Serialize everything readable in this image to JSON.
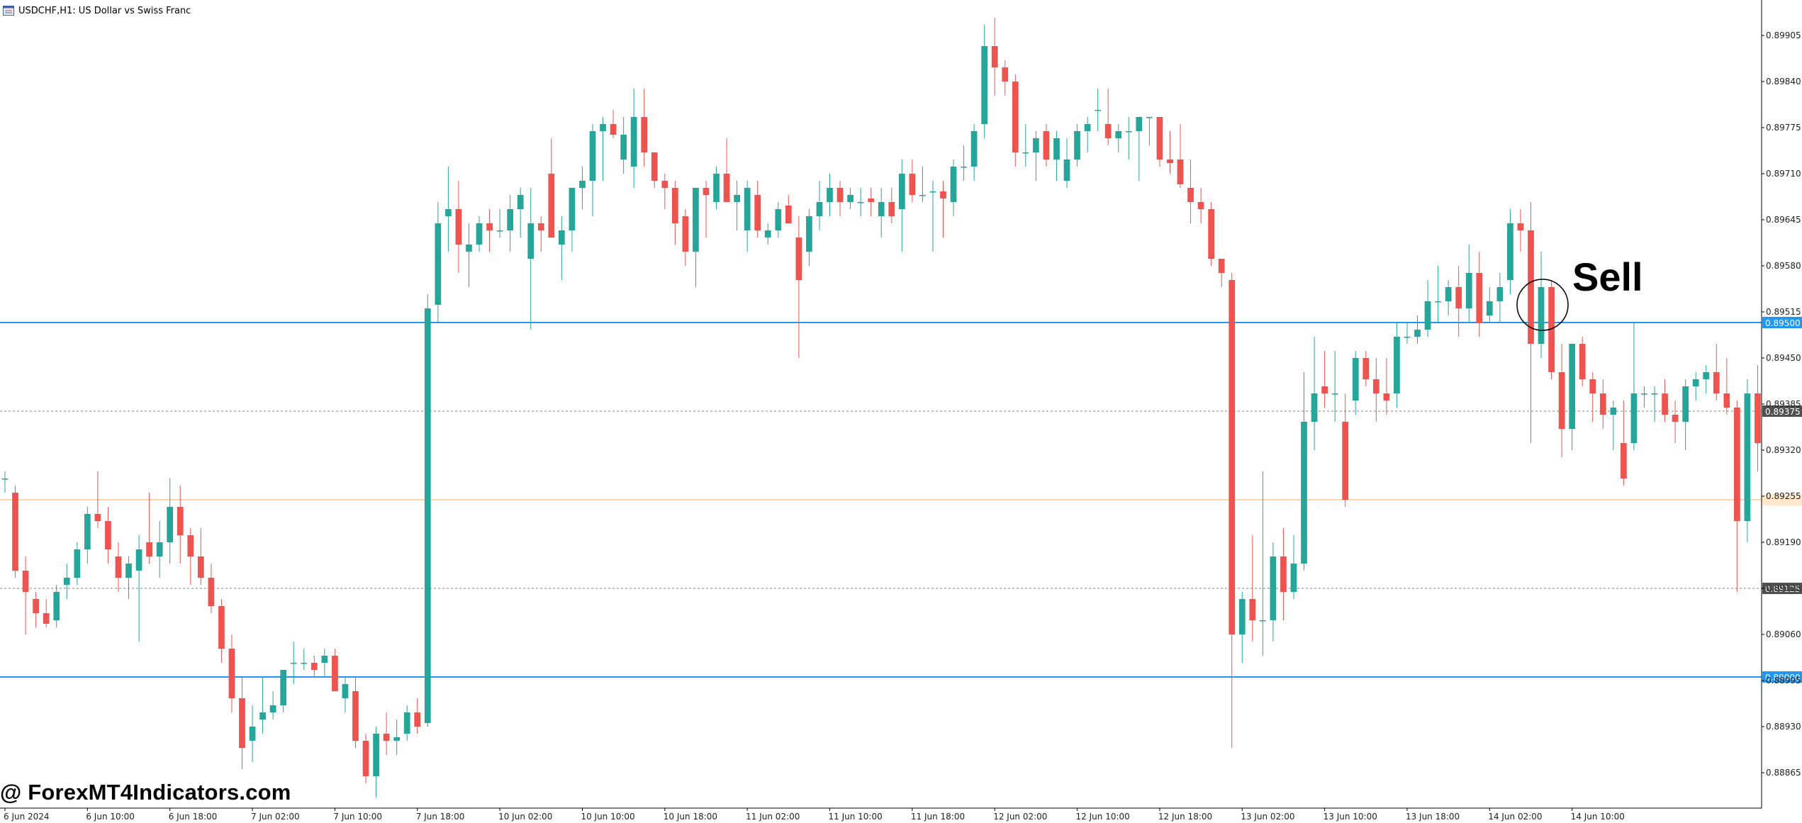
{
  "header": {
    "symbol_title": "USDCHF,H1:  US Dollar vs Swiss Franc"
  },
  "watermark": "@ ForexMT4Indicators.com",
  "annotation": {
    "label": "Sell"
  },
  "colors": {
    "bull": "#26a69a",
    "bear": "#ef5350",
    "level_line": "#2196f3",
    "dotted_line": "#808080",
    "orange_line": "#ffc58a",
    "axis_text": "#222222"
  },
  "chart_data": {
    "type": "candlestick",
    "ylim": [
      0.88815,
      0.89955
    ],
    "y_ticks": [
      "0.89905",
      "0.89840",
      "0.89775",
      "0.89710",
      "0.89645",
      "0.89580",
      "0.89515",
      "0.89450",
      "0.89385",
      "0.89320",
      "0.89255",
      "0.89190",
      "0.89125",
      "0.89060",
      "0.88995",
      "0.88930",
      "0.88865"
    ],
    "x_ticks": [
      "6 Jun 2024",
      "6 Jun 10:00",
      "6 Jun 18:00",
      "7 Jun 02:00",
      "7 Jun 10:00",
      "7 Jun 18:00",
      "10 Jun 02:00",
      "10 Jun 10:00",
      "10 Jun 18:00",
      "11 Jun 02:00",
      "11 Jun 10:00",
      "11 Jun 18:00",
      "12 Jun 02:00",
      "12 Jun 10:00",
      "12 Jun 18:00",
      "13 Jun 02:00",
      "13 Jun 10:00",
      "13 Jun 18:00",
      "14 Jun 02:00",
      "14 Jun 10:00"
    ],
    "horizontal_levels": [
      {
        "price": 0.895,
        "label": "0.89500",
        "style": "solid"
      },
      {
        "price": 0.89,
        "label": "0.89000",
        "style": "solid"
      },
      {
        "price": 0.89375,
        "label": "0.89375",
        "style": "dotted"
      },
      {
        "price": 0.89125,
        "label": "0.89125",
        "style": "dotted"
      },
      {
        "price": 0.8925,
        "label": "",
        "style": "orange"
      }
    ],
    "candles": [
      [
        0.8928,
        0.8929,
        0.8926,
        0.8928
      ],
      [
        0.8926,
        0.8927,
        0.8914,
        0.8915
      ],
      [
        0.8915,
        0.8917,
        0.8906,
        0.8912
      ],
      [
        0.8911,
        0.8912,
        0.8907,
        0.8909
      ],
      [
        0.8909,
        0.8911,
        0.8907,
        0.89075
      ],
      [
        0.8908,
        0.8913,
        0.8907,
        0.8912
      ],
      [
        0.8913,
        0.8916,
        0.8911,
        0.8914
      ],
      [
        0.8914,
        0.8919,
        0.8913,
        0.8918
      ],
      [
        0.8918,
        0.8924,
        0.8916,
        0.8923
      ],
      [
        0.8923,
        0.8929,
        0.8921,
        0.8922
      ],
      [
        0.8922,
        0.8924,
        0.8916,
        0.8918
      ],
      [
        0.8917,
        0.8919,
        0.8912,
        0.8914
      ],
      [
        0.8914,
        0.8917,
        0.8911,
        0.8916
      ],
      [
        0.8915,
        0.892,
        0.8905,
        0.8918
      ],
      [
        0.8919,
        0.8926,
        0.8916,
        0.8917
      ],
      [
        0.8917,
        0.8922,
        0.8914,
        0.8919
      ],
      [
        0.8919,
        0.8928,
        0.8916,
        0.8924
      ],
      [
        0.8924,
        0.8927,
        0.8916,
        0.892
      ],
      [
        0.892,
        0.8921,
        0.8913,
        0.8917
      ],
      [
        0.8917,
        0.8921,
        0.8913,
        0.8914
      ],
      [
        0.8914,
        0.8916,
        0.8909,
        0.891
      ],
      [
        0.891,
        0.8911,
        0.8902,
        0.8904
      ],
      [
        0.8904,
        0.8906,
        0.8895,
        0.8897
      ],
      [
        0.8897,
        0.89,
        0.8887,
        0.889
      ],
      [
        0.8891,
        0.8896,
        0.8888,
        0.8893
      ],
      [
        0.8894,
        0.89,
        0.8892,
        0.8895
      ],
      [
        0.8895,
        0.8898,
        0.8894,
        0.8896
      ],
      [
        0.8896,
        0.8901,
        0.8895,
        0.8901
      ],
      [
        0.8902,
        0.8905,
        0.8899,
        0.8902
      ],
      [
        0.8902,
        0.8904,
        0.8901,
        0.8902
      ],
      [
        0.8902,
        0.8903,
        0.89,
        0.8901
      ],
      [
        0.8902,
        0.8904,
        0.89,
        0.8903
      ],
      [
        0.8903,
        0.8904,
        0.8898,
        0.8898
      ],
      [
        0.8897,
        0.89,
        0.8895,
        0.8899
      ],
      [
        0.8898,
        0.89,
        0.889,
        0.8891
      ],
      [
        0.8891,
        0.8892,
        0.8885,
        0.8886
      ],
      [
        0.8886,
        0.8893,
        0.8883,
        0.8892
      ],
      [
        0.8892,
        0.8895,
        0.8889,
        0.8891
      ],
      [
        0.8891,
        0.8894,
        0.8889,
        0.88915
      ],
      [
        0.8892,
        0.8896,
        0.8891,
        0.8895
      ],
      [
        0.8895,
        0.8897,
        0.8892,
        0.8893
      ],
      [
        0.88935,
        0.8954,
        0.8893,
        0.8952
      ],
      [
        0.89525,
        0.8967,
        0.895,
        0.8964
      ],
      [
        0.8965,
        0.8972,
        0.896,
        0.8966
      ],
      [
        0.8966,
        0.897,
        0.8957,
        0.8961
      ],
      [
        0.896,
        0.8964,
        0.8955,
        0.8961
      ],
      [
        0.8961,
        0.8965,
        0.896,
        0.8964
      ],
      [
        0.8964,
        0.8966,
        0.896,
        0.8963
      ],
      [
        0.8963,
        0.8966,
        0.8962,
        0.8963
      ],
      [
        0.8963,
        0.8968,
        0.896,
        0.8966
      ],
      [
        0.8966,
        0.8969,
        0.8962,
        0.8968
      ],
      [
        0.8959,
        0.8969,
        0.8949,
        0.8964
      ],
      [
        0.8964,
        0.8965,
        0.896,
        0.8963
      ],
      [
        0.8971,
        0.8976,
        0.8962,
        0.8962
      ],
      [
        0.8961,
        0.8965,
        0.8956,
        0.8963
      ],
      [
        0.8963,
        0.8969,
        0.896,
        0.8969
      ],
      [
        0.8969,
        0.8972,
        0.8966,
        0.897
      ],
      [
        0.897,
        0.8978,
        0.8965,
        0.8977
      ],
      [
        0.8977,
        0.8979,
        0.897,
        0.8978
      ],
      [
        0.8978,
        0.898,
        0.8976,
        0.89765
      ],
      [
        0.8973,
        0.8979,
        0.8971,
        0.89765
      ],
      [
        0.8972,
        0.8983,
        0.8969,
        0.8979
      ],
      [
        0.8979,
        0.8983,
        0.8972,
        0.8974
      ],
      [
        0.8974,
        0.8974,
        0.8969,
        0.897
      ],
      [
        0.897,
        0.8971,
        0.8966,
        0.8969
      ],
      [
        0.8969,
        0.897,
        0.8961,
        0.8964
      ],
      [
        0.8965,
        0.8966,
        0.8958,
        0.896
      ],
      [
        0.896,
        0.8969,
        0.8955,
        0.8969
      ],
      [
        0.8969,
        0.897,
        0.8962,
        0.8968
      ],
      [
        0.8967,
        0.8972,
        0.8966,
        0.8971
      ],
      [
        0.8971,
        0.8976,
        0.8968,
        0.8967
      ],
      [
        0.8967,
        0.897,
        0.8963,
        0.8968
      ],
      [
        0.8963,
        0.897,
        0.896,
        0.8969
      ],
      [
        0.8968,
        0.897,
        0.8962,
        0.8963
      ],
      [
        0.8962,
        0.8964,
        0.8961,
        0.8963
      ],
      [
        0.8963,
        0.8967,
        0.8962,
        0.8966
      ],
      [
        0.89665,
        0.8968,
        0.8964,
        0.8964
      ],
      [
        0.8962,
        0.8965,
        0.8945,
        0.8956
      ],
      [
        0.896,
        0.8966,
        0.8958,
        0.8965
      ],
      [
        0.8965,
        0.897,
        0.8963,
        0.8967
      ],
      [
        0.8967,
        0.8971,
        0.8965,
        0.8969
      ],
      [
        0.8969,
        0.897,
        0.8965,
        0.8967
      ],
      [
        0.8967,
        0.8969,
        0.8966,
        0.8968
      ],
      [
        0.8967,
        0.8969,
        0.8965,
        0.8967
      ],
      [
        0.89675,
        0.8969,
        0.8965,
        0.8967
      ],
      [
        0.8965,
        0.8969,
        0.8962,
        0.8967
      ],
      [
        0.8967,
        0.8969,
        0.8964,
        0.8965
      ],
      [
        0.8966,
        0.8973,
        0.896,
        0.8971
      ],
      [
        0.8971,
        0.8973,
        0.8967,
        0.8968
      ],
      [
        0.8968,
        0.8972,
        0.8967,
        0.8968
      ],
      [
        0.89685,
        0.897,
        0.896,
        0.89685
      ],
      [
        0.89685,
        0.897,
        0.8962,
        0.89675
      ],
      [
        0.8967,
        0.8973,
        0.8965,
        0.8972
      ],
      [
        0.8972,
        0.8975,
        0.897,
        0.8972
      ],
      [
        0.8972,
        0.8978,
        0.897,
        0.8977
      ],
      [
        0.8978,
        0.8992,
        0.8976,
        0.8989
      ],
      [
        0.8989,
        0.8993,
        0.8982,
        0.8986
      ],
      [
        0.8986,
        0.8987,
        0.8982,
        0.8984
      ],
      [
        0.8984,
        0.8985,
        0.8972,
        0.8974
      ],
      [
        0.8974,
        0.8978,
        0.8972,
        0.8974
      ],
      [
        0.8974,
        0.8977,
        0.897,
        0.8976
      ],
      [
        0.8977,
        0.8978,
        0.8972,
        0.8973
      ],
      [
        0.8973,
        0.8977,
        0.897,
        0.8976
      ],
      [
        0.897,
        0.8976,
        0.8969,
        0.8973
      ],
      [
        0.8973,
        0.8978,
        0.8972,
        0.8977
      ],
      [
        0.8977,
        0.8979,
        0.8974,
        0.8978
      ],
      [
        0.898,
        0.8983,
        0.8977,
        0.898
      ],
      [
        0.8978,
        0.8983,
        0.8975,
        0.8976
      ],
      [
        0.8976,
        0.8978,
        0.8974,
        0.8977
      ],
      [
        0.8977,
        0.8979,
        0.8973,
        0.8977
      ],
      [
        0.8977,
        0.8978,
        0.897,
        0.8979
      ],
      [
        0.8979,
        0.8979,
        0.8975,
        0.8979
      ],
      [
        0.8979,
        0.8979,
        0.8972,
        0.8973
      ],
      [
        0.8973,
        0.8977,
        0.8971,
        0.89725
      ],
      [
        0.8973,
        0.8978,
        0.8969,
        0.89695
      ],
      [
        0.8969,
        0.8973,
        0.8964,
        0.8967
      ],
      [
        0.8967,
        0.8969,
        0.8964,
        0.8966
      ],
      [
        0.8966,
        0.8967,
        0.8958,
        0.8959
      ],
      [
        0.8959,
        0.8959,
        0.8955,
        0.8957
      ],
      [
        0.8956,
        0.8957,
        0.889,
        0.8906
      ],
      [
        0.8906,
        0.8912,
        0.8902,
        0.8911
      ],
      [
        0.8911,
        0.892,
        0.8905,
        0.8908
      ],
      [
        0.8908,
        0.8929,
        0.8903,
        0.8908
      ],
      [
        0.8908,
        0.8919,
        0.8905,
        0.8917
      ],
      [
        0.8917,
        0.8921,
        0.8908,
        0.8912
      ],
      [
        0.8912,
        0.892,
        0.8911,
        0.8916
      ],
      [
        0.8916,
        0.8943,
        0.8915,
        0.8936
      ],
      [
        0.8936,
        0.8948,
        0.8932,
        0.894
      ],
      [
        0.8941,
        0.8946,
        0.8938,
        0.894
      ],
      [
        0.894,
        0.8946,
        0.8936,
        0.894
      ],
      [
        0.8936,
        0.894,
        0.8924,
        0.8925
      ],
      [
        0.8939,
        0.8946,
        0.8937,
        0.8945
      ],
      [
        0.8945,
        0.8946,
        0.8941,
        0.8942
      ],
      [
        0.8942,
        0.8945,
        0.8936,
        0.894
      ],
      [
        0.894,
        0.8945,
        0.8937,
        0.8939
      ],
      [
        0.894,
        0.895,
        0.8938,
        0.8948
      ],
      [
        0.8948,
        0.895,
        0.8947,
        0.8948
      ],
      [
        0.8948,
        0.8951,
        0.8947,
        0.8949
      ],
      [
        0.8949,
        0.8956,
        0.8948,
        0.8953
      ],
      [
        0.8953,
        0.8958,
        0.895,
        0.8953
      ],
      [
        0.8953,
        0.8956,
        0.8951,
        0.8955
      ],
      [
        0.8955,
        0.8958,
        0.8948,
        0.8952
      ],
      [
        0.8952,
        0.8961,
        0.895,
        0.8957
      ],
      [
        0.8957,
        0.896,
        0.8948,
        0.895
      ],
      [
        0.8951,
        0.8955,
        0.895,
        0.8953
      ],
      [
        0.8953,
        0.8957,
        0.895,
        0.8955
      ],
      [
        0.8956,
        0.8966,
        0.8954,
        0.8964
      ],
      [
        0.8964,
        0.8966,
        0.896,
        0.8963
      ],
      [
        0.8963,
        0.8967,
        0.8933,
        0.8947
      ],
      [
        0.8947,
        0.896,
        0.8945,
        0.8955
      ],
      [
        0.8955,
        0.8956,
        0.8942,
        0.8943
      ],
      [
        0.8943,
        0.8947,
        0.8931,
        0.8935
      ],
      [
        0.8935,
        0.8947,
        0.8932,
        0.8947
      ],
      [
        0.8947,
        0.8948,
        0.8941,
        0.8942
      ],
      [
        0.8942,
        0.8943,
        0.8936,
        0.894
      ],
      [
        0.894,
        0.8942,
        0.8935,
        0.8937
      ],
      [
        0.8937,
        0.8939,
        0.8932,
        0.8938
      ],
      [
        0.8933,
        0.8939,
        0.8927,
        0.8928
      ],
      [
        0.8933,
        0.895,
        0.8932,
        0.894
      ],
      [
        0.894,
        0.8941,
        0.8938,
        0.894
      ],
      [
        0.894,
        0.8941,
        0.8936,
        0.894
      ],
      [
        0.894,
        0.8942,
        0.8936,
        0.8937
      ],
      [
        0.8937,
        0.8939,
        0.8933,
        0.8936
      ],
      [
        0.8936,
        0.8942,
        0.8932,
        0.8941
      ],
      [
        0.8941,
        0.8943,
        0.8939,
        0.8942
      ],
      [
        0.8942,
        0.8944,
        0.894,
        0.8943
      ],
      [
        0.8943,
        0.8947,
        0.8939,
        0.894
      ],
      [
        0.894,
        0.8945,
        0.8937,
        0.8938
      ],
      [
        0.8938,
        0.8939,
        0.8912,
        0.8922
      ],
      [
        0.8922,
        0.8942,
        0.8919,
        0.894
      ],
      [
        0.894,
        0.8944,
        0.8929,
        0.8933
      ]
    ]
  }
}
